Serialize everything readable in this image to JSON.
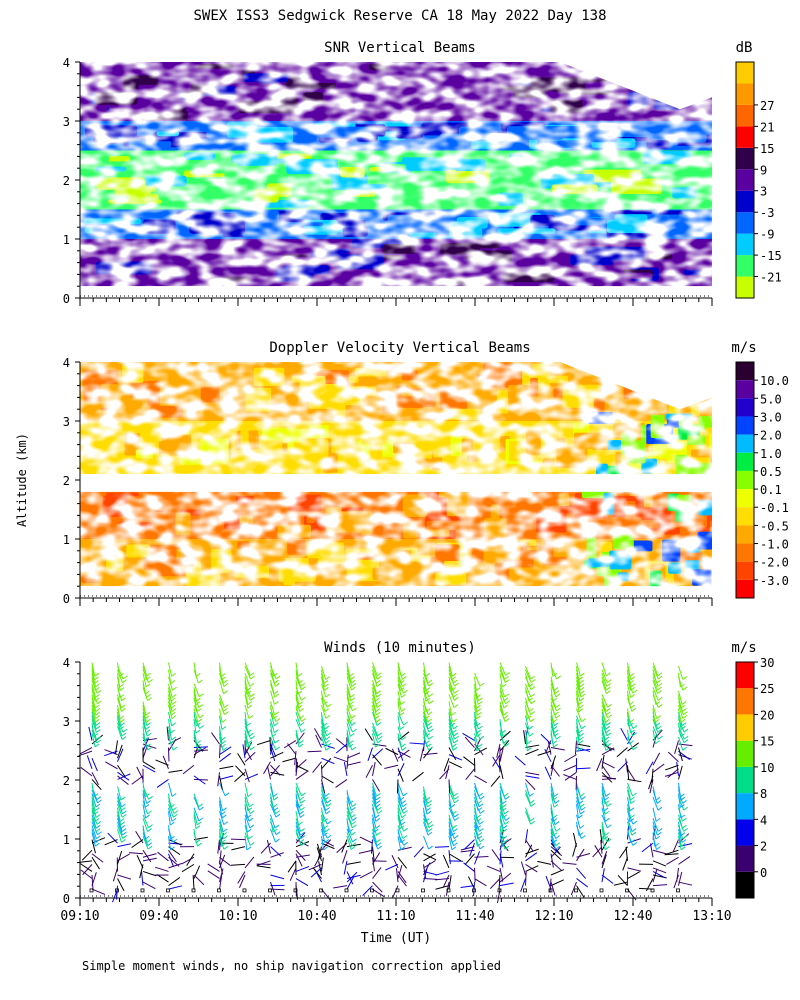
{
  "figure": {
    "title": "SWEX ISS3 Sedgwick Reserve CA  18 May 2022 Day 138",
    "ylabel": "Altitude (km)",
    "xlabel": "Time (UT)",
    "footnote": "Simple moment winds, no ship navigation correction applied"
  },
  "chart_data": [
    {
      "type": "heatmap",
      "title": "SNR Vertical Beams",
      "units": "dB",
      "ylim": [
        0,
        4
      ],
      "yticks": [
        "0",
        "1",
        "2",
        "3",
        "4"
      ],
      "xlim": [
        "09:10",
        "13:10"
      ],
      "colorbar": {
        "labels": [
          "-21",
          "-15",
          "-9",
          "-3",
          "3",
          "9",
          "15",
          "21",
          "27"
        ],
        "colors": [
          "#c8ff00",
          "#33ff66",
          "#00ccff",
          "#0066ff",
          "#0000cc",
          "#5a00a0",
          "#30004a",
          "#ff0000",
          "#ff6600",
          "#ff9900",
          "#ffcc00"
        ]
      },
      "layers": [
        {
          "alt_range": [
            0.2,
            1.0
          ],
          "snr_db": 5
        },
        {
          "alt_range": [
            1.0,
            1.5
          ],
          "snr_db": -4
        },
        {
          "alt_range": [
            1.5,
            2.5
          ],
          "snr_db": -16
        },
        {
          "alt_range": [
            2.5,
            3.0
          ],
          "snr_db": -8
        },
        {
          "alt_range": [
            3.0,
            4.0
          ],
          "snr_db": 8
        }
      ]
    },
    {
      "type": "heatmap",
      "title": "Doppler Velocity Vertical Beams",
      "units": "m/s",
      "ylim": [
        0,
        4
      ],
      "yticks": [
        "0",
        "1",
        "2",
        "3",
        "4"
      ],
      "xlim": [
        "09:10",
        "13:10"
      ],
      "colorbar": {
        "labels": [
          "10.0",
          "5.0",
          "3.0",
          "2.0",
          "1.0",
          "0.5",
          "0.1",
          "-0.1",
          "-0.5",
          "-1.0",
          "-2.0",
          "-3.0"
        ],
        "colors": [
          "#2a0030",
          "#5a00a0",
          "#2200cc",
          "#0044ff",
          "#00bbff",
          "#00ee44",
          "#88ff00",
          "#eeff00",
          "#ffdd00",
          "#ffaa00",
          "#ff7700",
          "#ff4400",
          "#ff0000"
        ]
      },
      "layers": [
        {
          "alt_range": [
            0.2,
            1.0
          ],
          "velocity_ms": -1.0
        },
        {
          "alt_range": [
            1.0,
            1.8
          ],
          "velocity_ms": -2.0
        },
        {
          "alt_range": [
            2.1,
            3.0
          ],
          "velocity_ms": -0.5
        },
        {
          "alt_range": [
            3.0,
            4.0
          ],
          "velocity_ms": -1.0
        }
      ]
    },
    {
      "type": "barbs",
      "title": "Winds (10 minutes)",
      "units": "m/s",
      "ylim": [
        0,
        4
      ],
      "yticks": [
        "0",
        "1",
        "2",
        "3",
        "4"
      ],
      "xticks": [
        "09:10",
        "09:40",
        "10:10",
        "10:40",
        "11:10",
        "11:40",
        "12:10",
        "12:40",
        "13:10"
      ],
      "colorbar": {
        "labels": [
          "0",
          "2",
          "4",
          "8",
          "10",
          "15",
          "20",
          "25",
          "30"
        ],
        "colors": [
          "#000000",
          "#3a0070",
          "#0000ee",
          "#00aaff",
          "#00dd88",
          "#66ee00",
          "#ffcc00",
          "#ff7700",
          "#ff0000"
        ]
      },
      "profiles_per_hour": 6,
      "speed_by_altitude_ms": [
        {
          "alt_range": [
            0.1,
            1.0
          ],
          "speed": 3
        },
        {
          "alt_range": [
            1.0,
            2.0
          ],
          "speed": 10
        },
        {
          "alt_range": [
            2.0,
            2.7
          ],
          "speed": 3
        },
        {
          "alt_range": [
            2.7,
            3.2
          ],
          "speed": 12
        },
        {
          "alt_range": [
            3.2,
            4.0
          ],
          "speed": 18
        }
      ]
    }
  ]
}
